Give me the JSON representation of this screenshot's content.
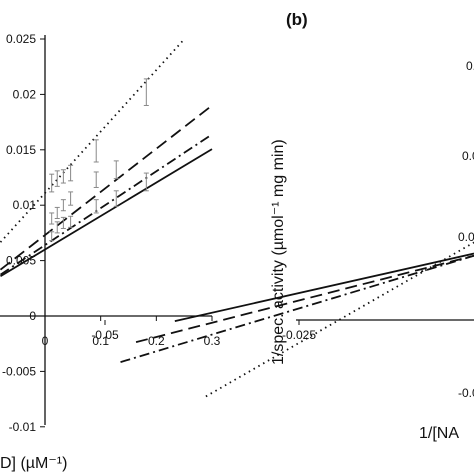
{
  "chart_data": [
    {
      "type": "line",
      "panel": "a",
      "xlabel": "D] (µM⁻¹)",
      "ylabel": "",
      "xlim": [
        -0.08,
        0.3
      ],
      "ylim": [
        -0.01,
        0.025
      ],
      "x_ticks": [
        "0",
        "0.1",
        "0.2",
        "0.3"
      ],
      "y_ticks": [
        "0.025",
        "0.02",
        "0.015",
        "0.01",
        "0.005",
        "0",
        "-0.005",
        "-0.01"
      ],
      "series": [
        {
          "style": "dotted",
          "intercept": 0.0111,
          "slope": 0.0555
        },
        {
          "style": "dashed",
          "intercept": 0.0073,
          "slope": 0.039
        },
        {
          "style": "dashdot",
          "intercept": 0.0064,
          "slope": 0.0333
        },
        {
          "style": "solid",
          "intercept": 0.006,
          "slope": 0.0302
        }
      ],
      "error_points": [
        {
          "x": 0.012,
          "y": 0.012,
          "err": 0.0008
        },
        {
          "x": 0.022,
          "y": 0.0124,
          "err": 0.0007
        },
        {
          "x": 0.033,
          "y": 0.0126,
          "err": 0.0006
        },
        {
          "x": 0.046,
          "y": 0.0129,
          "err": 0.0007
        },
        {
          "x": 0.092,
          "y": 0.0149,
          "err": 0.001
        },
        {
          "x": 0.182,
          "y": 0.0202,
          "err": 0.0012
        },
        {
          "x": 0.012,
          "y": 0.0088,
          "err": 0.0005
        },
        {
          "x": 0.022,
          "y": 0.0093,
          "err": 0.0005
        },
        {
          "x": 0.033,
          "y": 0.01,
          "err": 0.0005
        },
        {
          "x": 0.046,
          "y": 0.0106,
          "err": 0.0006
        },
        {
          "x": 0.092,
          "y": 0.0123,
          "err": 0.0007
        },
        {
          "x": 0.128,
          "y": 0.0132,
          "err": 0.0008
        },
        {
          "x": 0.012,
          "y": 0.0072,
          "err": 0.0004
        },
        {
          "x": 0.022,
          "y": 0.008,
          "err": 0.0005
        },
        {
          "x": 0.033,
          "y": 0.0084,
          "err": 0.0005
        },
        {
          "x": 0.046,
          "y": 0.0085,
          "err": 0.0005
        },
        {
          "x": 0.092,
          "y": 0.0099,
          "err": 0.0006
        },
        {
          "x": 0.128,
          "y": 0.0106,
          "err": 0.0007
        },
        {
          "x": 0.182,
          "y": 0.0121,
          "err": 0.0008
        }
      ]
    },
    {
      "type": "line",
      "panel": "b",
      "panel_label": "(b)",
      "xlabel": "1/[NA",
      "ylabel": "1/spec. activity (µmol⁻¹ mg min)",
      "xlim": [
        -0.05,
        0.0
      ],
      "ylim": [
        -0.01,
        0.025
      ],
      "x_ticks": [
        "-0.05",
        "-0.025"
      ],
      "y_ticks_visible_fragments": [
        "0.0",
        "0.0",
        "0.00",
        "-0.00"
      ],
      "series": [
        {
          "style": "solid",
          "x0": -0.041,
          "x1": 0.0,
          "y0": -0.0001,
          "y1": 0.006
        },
        {
          "style": "dashed",
          "x0": -0.046,
          "x1": 0.0,
          "y0": -0.002,
          "y1": 0.0058
        },
        {
          "style": "dashdot",
          "x0": -0.048,
          "x1": 0.0,
          "y0": -0.0038,
          "y1": 0.0058
        },
        {
          "style": "dotted",
          "x0": -0.037,
          "x1": 0.0,
          "y0": -0.0069,
          "y1": 0.007
        }
      ]
    }
  ]
}
